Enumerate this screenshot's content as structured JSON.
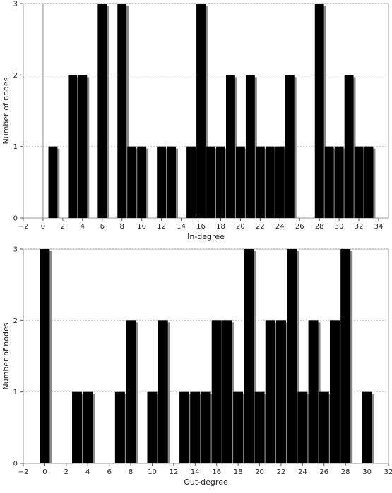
{
  "chart_data": [
    {
      "type": "bar",
      "xlabel": "In-degree",
      "ylabel": "Number of nodes",
      "xlim": [
        -2,
        35
      ],
      "ylim": [
        0,
        3
      ],
      "xticks": [
        -2,
        0,
        2,
        4,
        6,
        8,
        10,
        12,
        14,
        16,
        18,
        20,
        22,
        24,
        26,
        28,
        30,
        32,
        34
      ],
      "yticks": [
        0,
        1,
        2,
        3
      ],
      "grid": true,
      "x": [
        1,
        3,
        4,
        6,
        8,
        9,
        10,
        12,
        13,
        15,
        16,
        17,
        18,
        19,
        20,
        21,
        22,
        23,
        24,
        25,
        28,
        29,
        30,
        31,
        32,
        33
      ],
      "values": [
        1,
        2,
        2,
        3,
        3,
        1,
        1,
        1,
        1,
        1,
        3,
        1,
        1,
        2,
        1,
        2,
        1,
        1,
        1,
        2,
        3,
        1,
        1,
        2,
        1,
        1
      ]
    },
    {
      "type": "bar",
      "xlabel": "Out-degree",
      "ylabel": "Number of nodes",
      "xlim": [
        -2,
        32
      ],
      "ylim": [
        0,
        3
      ],
      "xticks": [
        -2,
        0,
        2,
        4,
        6,
        8,
        10,
        12,
        14,
        16,
        18,
        20,
        22,
        24,
        26,
        28,
        30,
        32
      ],
      "yticks": [
        0,
        1,
        2,
        3
      ],
      "grid": true,
      "x": [
        0,
        3,
        4,
        7,
        8,
        10,
        11,
        13,
        14,
        15,
        16,
        17,
        18,
        19,
        20,
        21,
        22,
        23,
        24,
        25,
        26,
        27,
        28,
        30
      ],
      "values": [
        3,
        1,
        1,
        1,
        2,
        1,
        2,
        1,
        1,
        1,
        2,
        2,
        1,
        3,
        1,
        2,
        2,
        3,
        1,
        2,
        1,
        2,
        3,
        1
      ]
    }
  ]
}
